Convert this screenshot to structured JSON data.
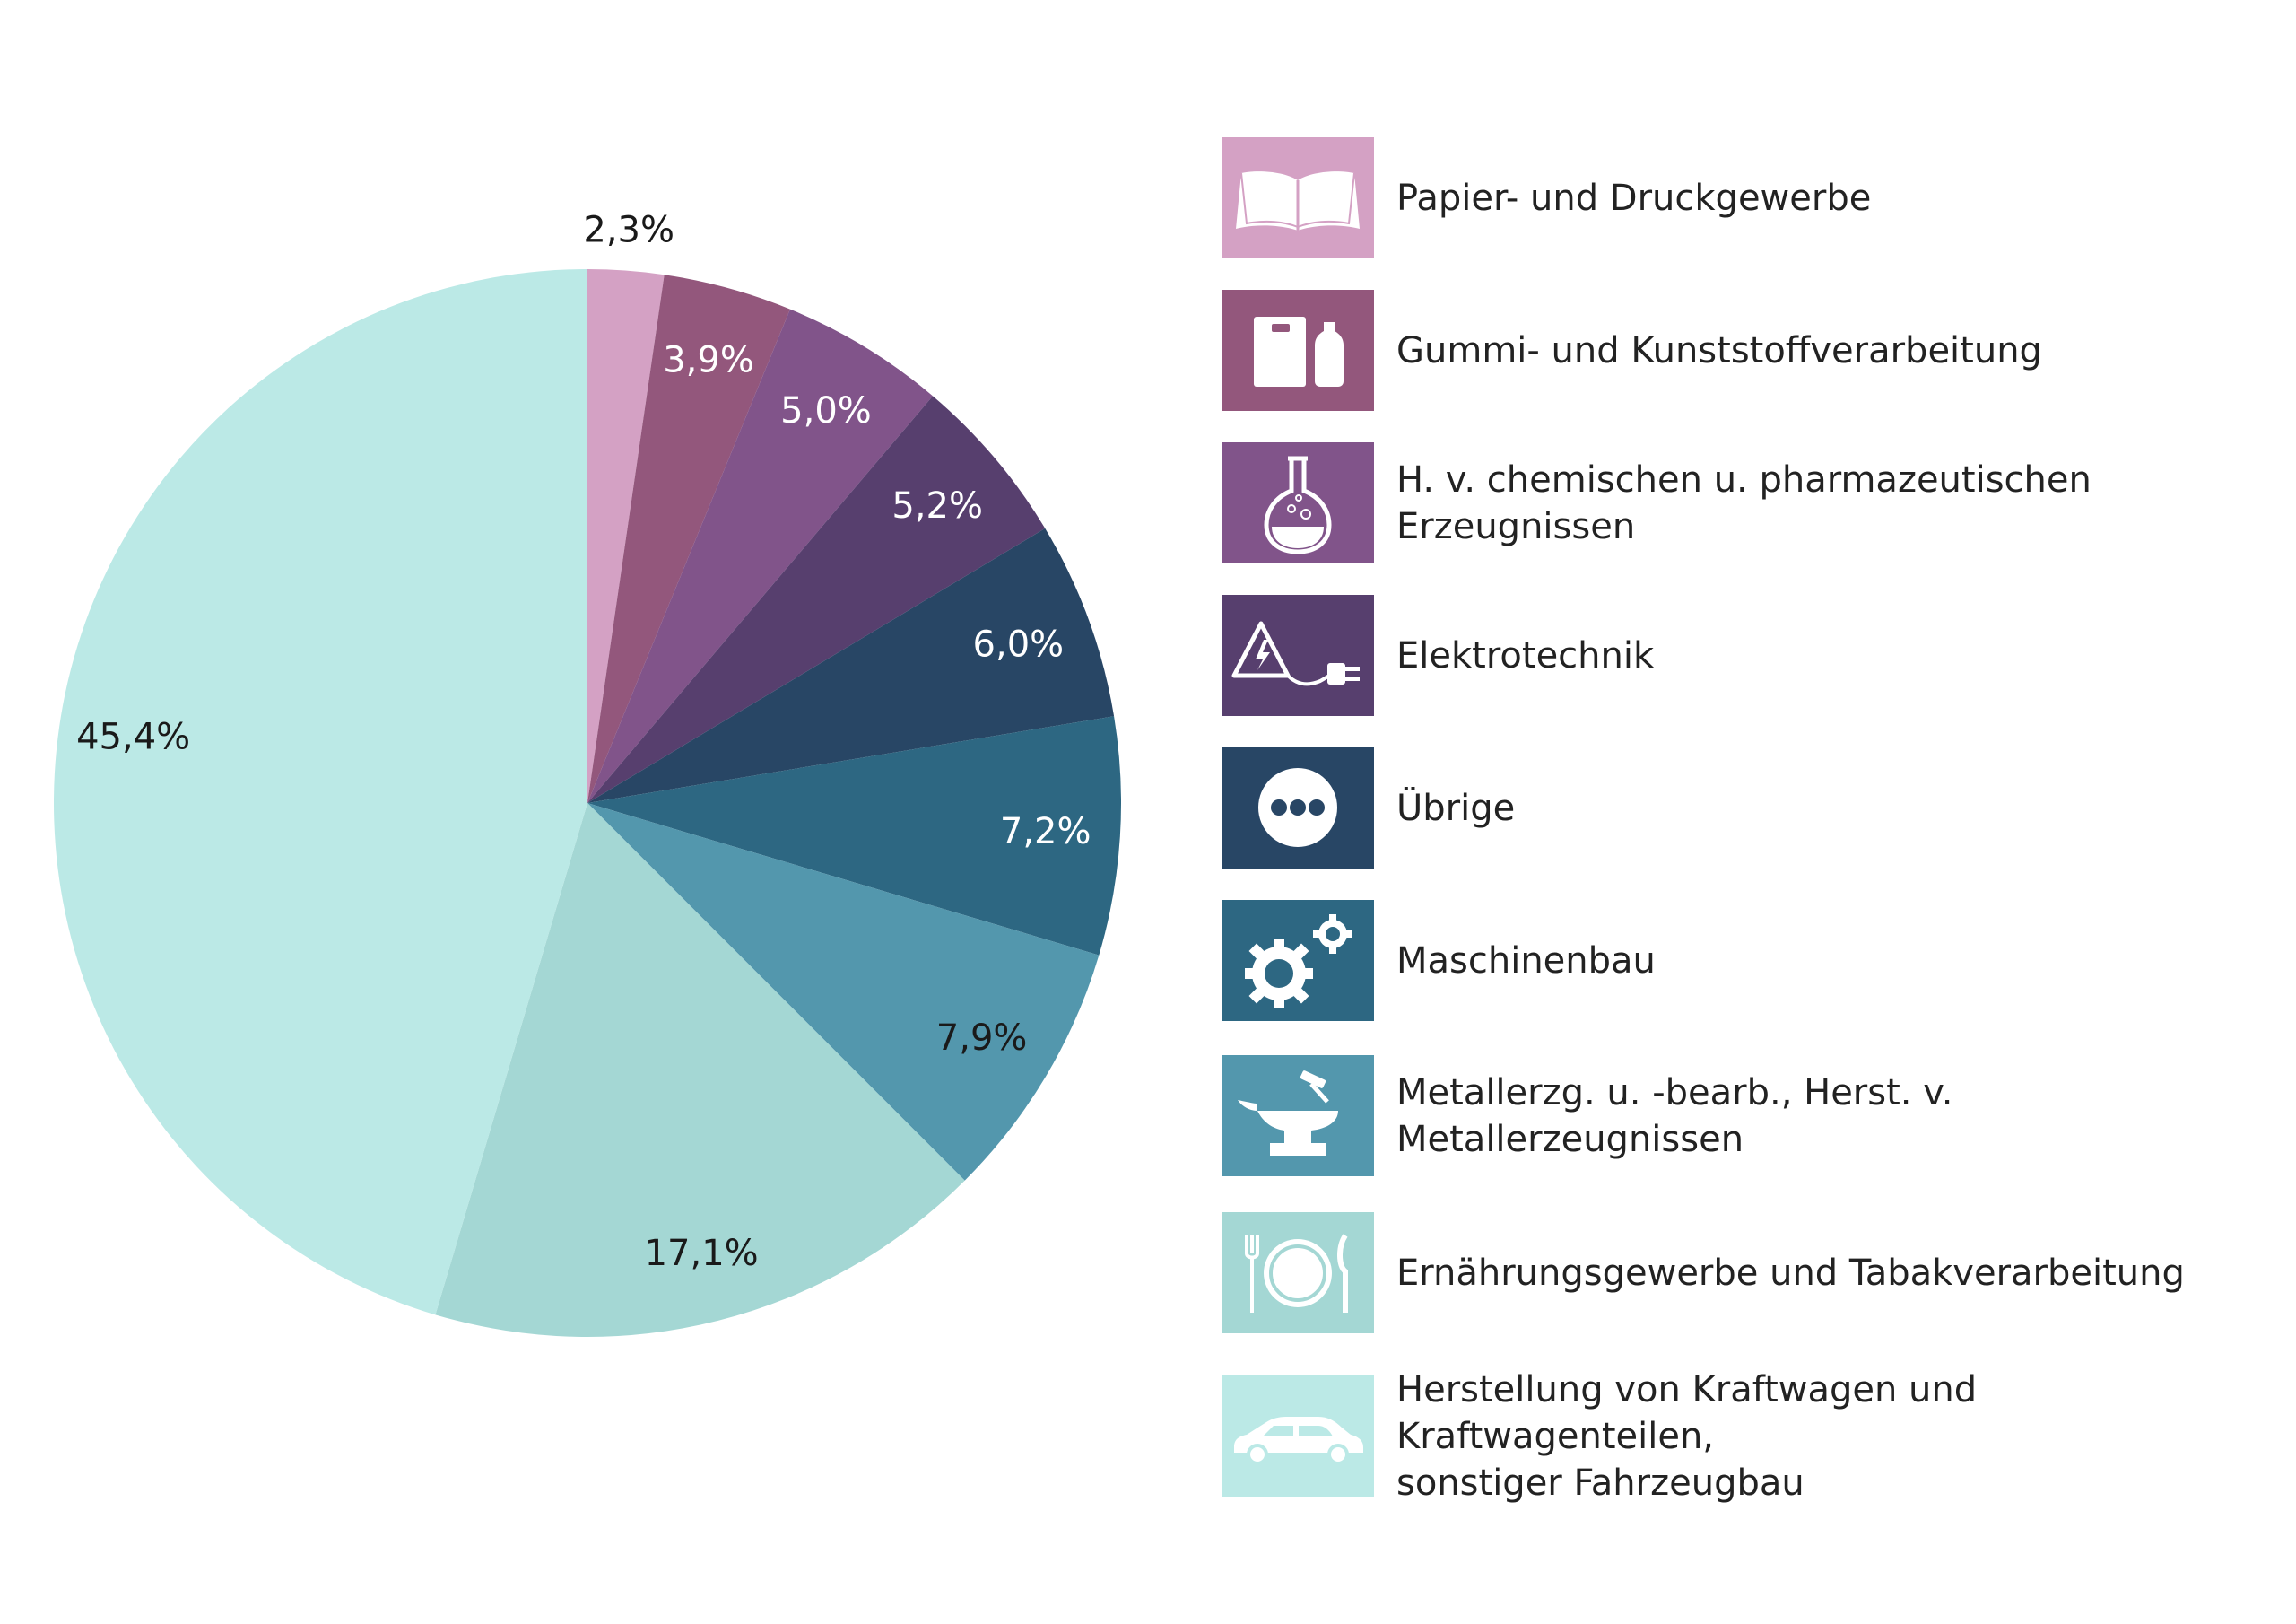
{
  "colors": {
    "light_text": "#ffffff",
    "dark_text": "#1a1a1a"
  },
  "chart_data": {
    "type": "pie",
    "title": "",
    "start_angle_deg": 0,
    "direction": "clockwise",
    "slices": [
      {
        "label": "Papier- und Druckgewerbe",
        "value": 2.3,
        "value_label": "2,3%",
        "color": "#d4a1c4",
        "icon": "open-book-icon",
        "label_text": "dark"
      },
      {
        "label": "Gummi- und Kunststoffverarbeitung",
        "value": 3.9,
        "value_label": "3,9%",
        "color": "#93577c",
        "icon": "packaging-bottle-icon",
        "label_text": "light"
      },
      {
        "label": "H. v. chemischen u. pharmazeutischen Erzeugnissen",
        "value": 5.0,
        "value_label": "5,0%",
        "color": "#81548a",
        "icon": "flask-icon",
        "label_text": "light"
      },
      {
        "label": "Elektrotechnik",
        "value": 5.2,
        "value_label": "5,2%",
        "color": "#573f6e",
        "icon": "electric-plug-icon",
        "label_text": "light"
      },
      {
        "label": "Übrige",
        "value": 6.0,
        "value_label": "6,0%",
        "color": "#284665",
        "icon": "more-dots-icon",
        "label_text": "light"
      },
      {
        "label": "Maschinenbau",
        "value": 7.2,
        "value_label": "7,2%",
        "color": "#2d6782",
        "icon": "gears-icon",
        "label_text": "light"
      },
      {
        "label": "Metallerzg. u. -bearb., Herst. v. Metallerzeugnissen",
        "value": 7.9,
        "value_label": "7,9%",
        "color": "#5397ad",
        "icon": "anvil-hammer-icon",
        "label_text": "dark"
      },
      {
        "label": "Ernährungsgewerbe und Tabakverarbeitung",
        "value": 17.1,
        "value_label": "17,1%",
        "color": "#a4d7d4",
        "icon": "plate-cutlery-icon",
        "label_text": "dark"
      },
      {
        "label": "Herstellung von Kraftwagen und Kraftwagenteilen,\nsonstiger Fahrzeugbau",
        "value": 45.4,
        "value_label": "45,4%",
        "color": "#bbe9e6",
        "icon": "car-icon",
        "label_text": "dark"
      }
    ],
    "legend_position": "right"
  }
}
